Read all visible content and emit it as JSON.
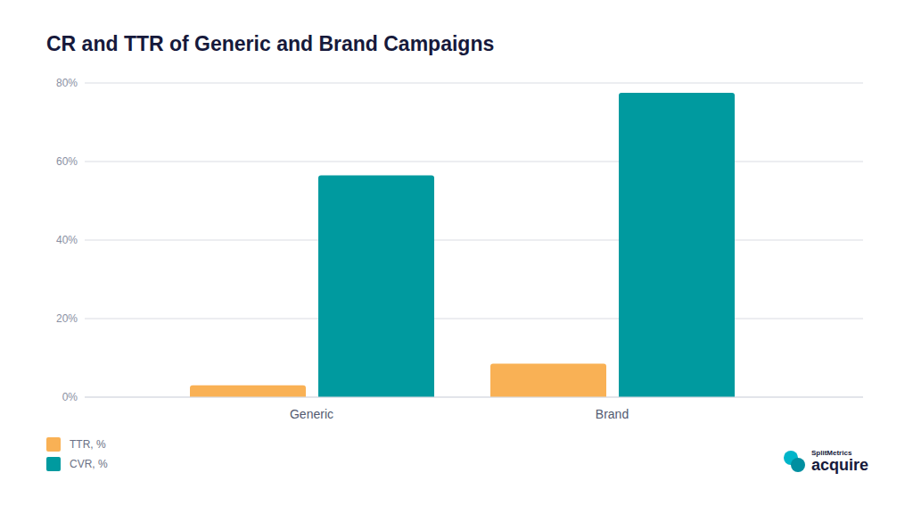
{
  "chart_data": {
    "type": "bar",
    "title": "CR and TTR of Generic and Brand Campaigns",
    "categories": [
      "Generic",
      "Brand"
    ],
    "series": [
      {
        "name": "TTR, %",
        "color": "#f9b155",
        "values": [
          3,
          8.5
        ]
      },
      {
        "name": "CVR, %",
        "color": "#009a9f",
        "values": [
          56.5,
          77.5
        ]
      }
    ],
    "ylim": [
      0,
      80
    ],
    "yticks": [
      {
        "value": 0,
        "label": "0%"
      },
      {
        "value": 20,
        "label": "20%"
      },
      {
        "value": 40,
        "label": "40%"
      },
      {
        "value": 60,
        "label": "60%"
      },
      {
        "value": 80,
        "label": "80%"
      }
    ],
    "grid": true,
    "legend": "bottom-left",
    "annotations": [
      "SplitMetrics",
      "acquire"
    ]
  }
}
